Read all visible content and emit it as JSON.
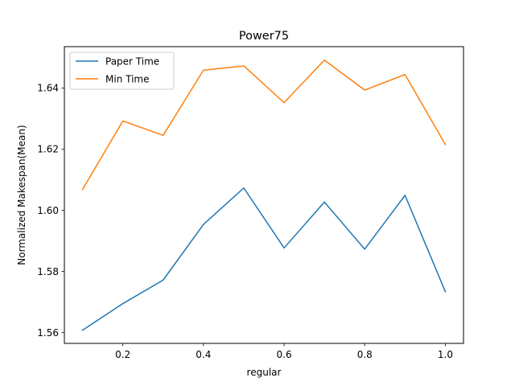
{
  "chart_data": {
    "type": "line",
    "title": "Power75",
    "xlabel": "regular",
    "ylabel": "Normalized Makespan(Mean)",
    "x": [
      0.1,
      0.2,
      0.3,
      0.4,
      0.5,
      0.6,
      0.7,
      0.8,
      0.9,
      1.0
    ],
    "xlim": [
      0.055,
      1.045
    ],
    "ylim": [
      1.5565,
      1.6535
    ],
    "xticks": [
      {
        "value": 0.2,
        "label": "0.2"
      },
      {
        "value": 0.4,
        "label": "0.4"
      },
      {
        "value": 0.6,
        "label": "0.6"
      },
      {
        "value": 0.8,
        "label": "0.8"
      },
      {
        "value": 1.0,
        "label": "1.0"
      }
    ],
    "yticks": [
      {
        "value": 1.56,
        "label": "1.56"
      },
      {
        "value": 1.58,
        "label": "1.58"
      },
      {
        "value": 1.6,
        "label": "1.60"
      },
      {
        "value": 1.62,
        "label": "1.62"
      },
      {
        "value": 1.64,
        "label": "1.64"
      }
    ],
    "series": [
      {
        "name": "Paper Time",
        "color": "#1f77b4",
        "values": [
          1.5608,
          1.5695,
          1.5772,
          1.5954,
          1.6073,
          1.5877,
          1.6027,
          1.5873,
          1.6049,
          1.5734
        ]
      },
      {
        "name": "Min Time",
        "color": "#ff7f0e",
        "values": [
          1.6068,
          1.6292,
          1.6245,
          1.6458,
          1.6472,
          1.6352,
          1.6491,
          1.6393,
          1.6444,
          1.6215
        ]
      }
    ],
    "legend_position": "upper-left",
    "grid": false
  }
}
